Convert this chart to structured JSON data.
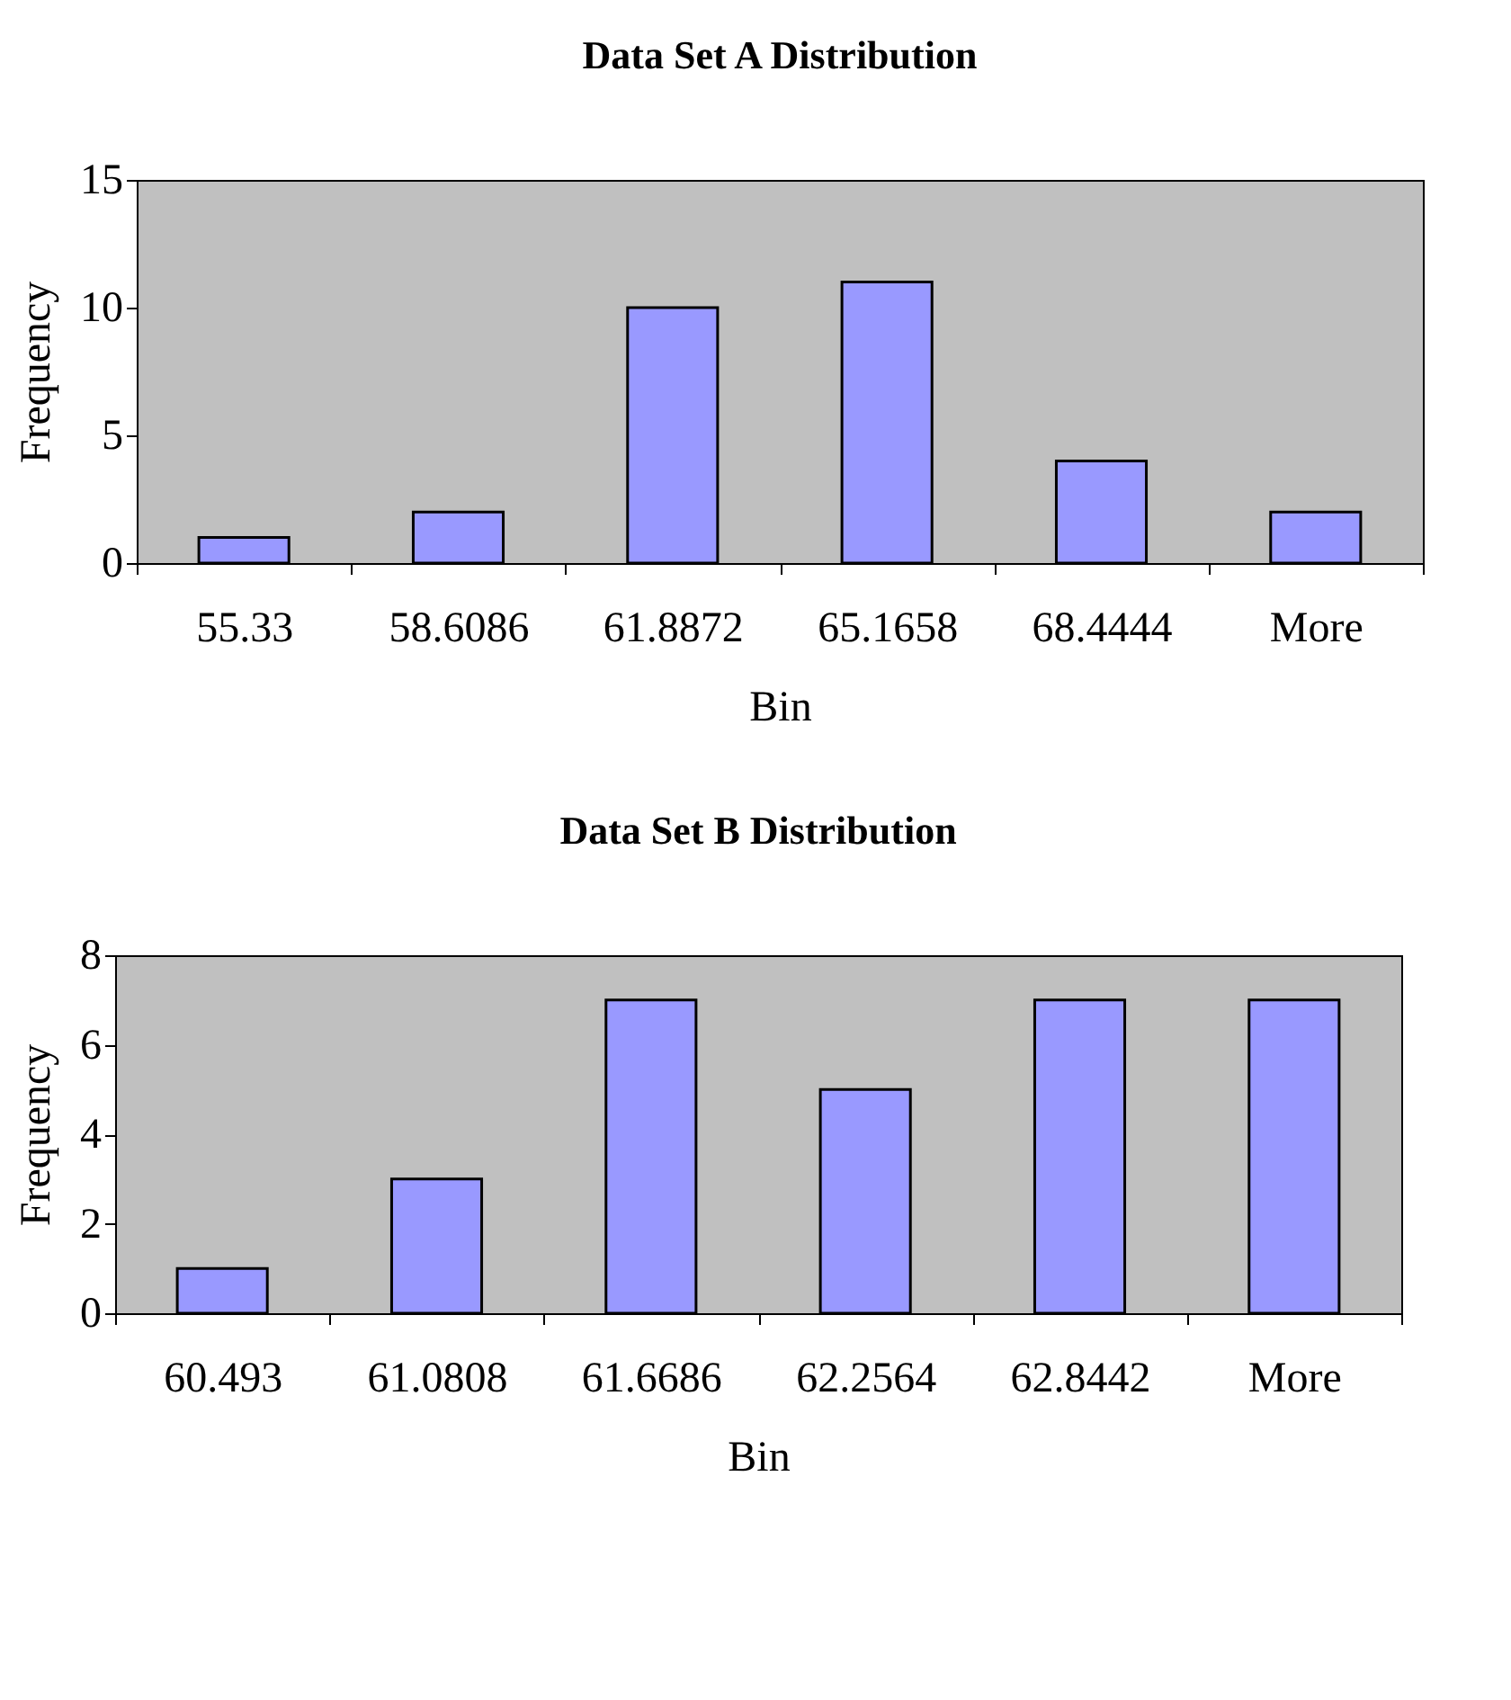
{
  "chart_data": [
    {
      "type": "bar",
      "title": "Data Set A Distribution",
      "xlabel": "Bin",
      "ylabel": "Frequency",
      "categories": [
        "55.33",
        "58.6086",
        "61.8872",
        "65.1658",
        "68.4444",
        "More"
      ],
      "values": [
        1,
        2,
        10,
        11,
        4,
        2
      ],
      "color": "#9999ff",
      "ylim": [
        0,
        15
      ],
      "yticks": [
        0,
        5,
        10,
        15
      ]
    },
    {
      "type": "bar",
      "title": "Data Set B Distribution",
      "xlabel": "Bin",
      "ylabel": "Frequency",
      "categories": [
        "60.493",
        "61.0808",
        "61.6686",
        "62.2564",
        "62.8442",
        "More"
      ],
      "values": [
        1,
        3,
        7,
        5,
        7,
        7
      ],
      "color": "#9999ff",
      "ylim": [
        0,
        8
      ],
      "yticks": [
        0,
        2,
        4,
        6,
        8
      ]
    }
  ]
}
